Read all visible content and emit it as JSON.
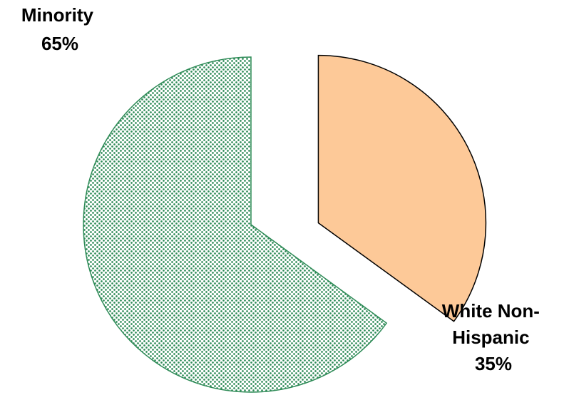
{
  "chart_data": {
    "type": "pie",
    "title": "",
    "legend": "none",
    "slices": [
      {
        "label_lines": [
          "White Non-",
          "Hispanic"
        ],
        "pct_label": "35%",
        "value": 35,
        "color": "#fdc998",
        "fill_style": "solid",
        "exploded": true
      },
      {
        "label_lines": [
          "Minority"
        ],
        "pct_label": "65%",
        "value": 65,
        "color": "#2e8b57",
        "fill_style": "dotted",
        "exploded": false
      }
    ]
  }
}
